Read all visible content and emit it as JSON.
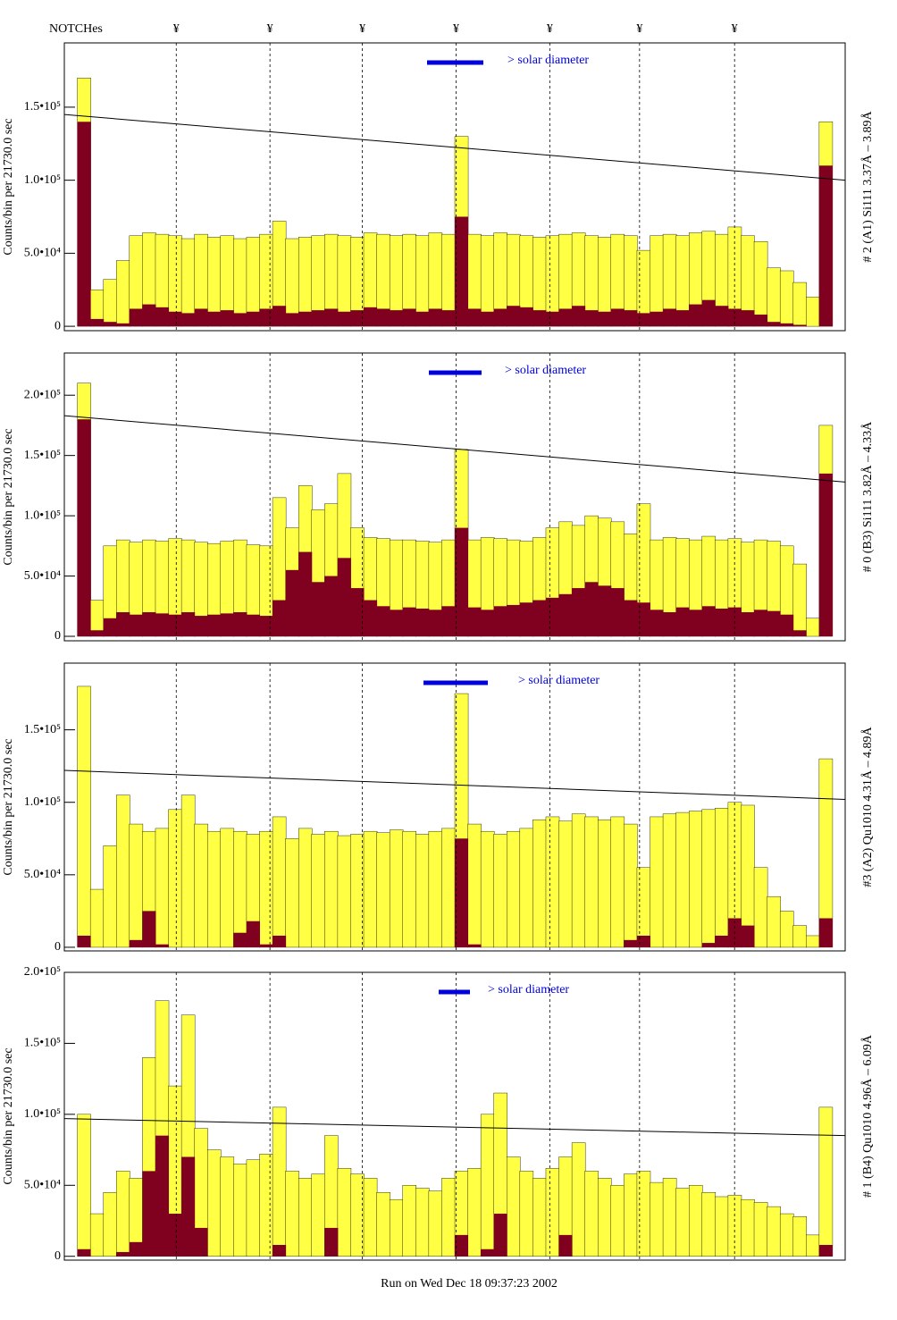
{
  "header": {
    "label": "NOTCHes",
    "markers": [
      "¥",
      "¥",
      "¥",
      "¥",
      "¥",
      "¥",
      "¥"
    ]
  },
  "footer": "Run on Wed Dec 18 09:37:23 2002",
  "chart_data": [
    {
      "type": "histogram",
      "annotation": "> solar diameter",
      "ylabel": "Counts/bin per  21730.0 sec",
      "right_label": "# 2 (A1) Si111  3.37Å – 3.89Å",
      "xlim": [
        0,
        60
      ],
      "notch_x": [
        8.6,
        15.8,
        22.9,
        30.1,
        37.3,
        44.2,
        51.5
      ],
      "ylim": [
        -3000,
        194000
      ],
      "yticks": [
        0,
        {
          "value": 50000,
          "label": "5.0•10⁴"
        },
        {
          "value": 100000,
          "label": "1.0•10⁵"
        },
        {
          "value": 150000,
          "label": "1.5•10⁵"
        }
      ],
      "reference_line": [
        145000,
        100000
      ],
      "series": [
        {
          "color": "#ffff44",
          "values": [
            0,
            170000,
            25000,
            32000,
            45000,
            62000,
            64000,
            63000,
            62000,
            60000,
            63000,
            61000,
            62000,
            60000,
            61000,
            63000,
            72000,
            60000,
            61000,
            62000,
            63000,
            62000,
            61000,
            64000,
            63000,
            62000,
            63000,
            62000,
            64000,
            63000,
            130000,
            63000,
            62000,
            64000,
            63000,
            62000,
            61000,
            62000,
            63000,
            64000,
            62000,
            61000,
            63000,
            62000,
            52000,
            62000,
            63000,
            62000,
            64000,
            65000,
            63000,
            68000,
            62000,
            58000,
            40000,
            38000,
            30000,
            20000,
            140000,
            0
          ]
        },
        {
          "color": "#800020",
          "values": [
            0,
            140000,
            5000,
            3000,
            2000,
            12000,
            15000,
            13000,
            10000,
            9000,
            12000,
            10000,
            11000,
            9000,
            10000,
            12000,
            14000,
            9000,
            10000,
            11000,
            12000,
            10000,
            11000,
            13000,
            12000,
            11000,
            12000,
            10000,
            12000,
            11000,
            75000,
            12000,
            10000,
            12000,
            14000,
            13000,
            11000,
            10000,
            12000,
            14000,
            11000,
            10000,
            12000,
            11000,
            9000,
            10000,
            12000,
            11000,
            15000,
            18000,
            14000,
            12000,
            11000,
            8000,
            3000,
            2000,
            1000,
            0,
            110000,
            0
          ]
        }
      ]
    },
    {
      "type": "histogram",
      "annotation": "> solar diameter",
      "ylabel": "Counts/bin per  21730.0 sec",
      "right_label": "# 0 (B3) Si111  3.82Å – 4.33Å",
      "xlim": [
        0,
        60
      ],
      "notch_x": [
        8.6,
        15.8,
        22.9,
        30.1,
        37.3,
        44.2,
        51.5
      ],
      "ylim": [
        -3700,
        235000
      ],
      "yticks": [
        0,
        {
          "value": 50000,
          "label": "5.0•10⁴"
        },
        {
          "value": 100000,
          "label": "1.0•10⁵"
        },
        {
          "value": 150000,
          "label": "1.5•10⁵"
        },
        {
          "value": 200000,
          "label": "2.0•10⁵"
        }
      ],
      "reference_line": [
        183000,
        128000
      ],
      "series": [
        {
          "color": "#ffff44",
          "values": [
            0,
            210000,
            30000,
            75000,
            80000,
            78000,
            80000,
            79000,
            81000,
            80000,
            78000,
            77000,
            79000,
            80000,
            76000,
            75000,
            115000,
            90000,
            125000,
            105000,
            110000,
            135000,
            90000,
            82000,
            81000,
            80000,
            80000,
            79000,
            78000,
            80000,
            155000,
            80000,
            82000,
            81000,
            80000,
            79000,
            82000,
            90000,
            95000,
            92000,
            100000,
            98000,
            95000,
            85000,
            110000,
            80000,
            82000,
            81000,
            80000,
            83000,
            80000,
            81000,
            78000,
            80000,
            79000,
            75000,
            60000,
            15000,
            175000,
            0
          ]
        },
        {
          "color": "#800020",
          "values": [
            0,
            180000,
            5000,
            15000,
            20000,
            18000,
            20000,
            19000,
            18000,
            20000,
            17000,
            18000,
            19000,
            20000,
            18000,
            17000,
            30000,
            55000,
            70000,
            45000,
            50000,
            65000,
            40000,
            30000,
            25000,
            22000,
            24000,
            23000,
            22000,
            25000,
            90000,
            24000,
            22000,
            25000,
            26000,
            28000,
            30000,
            32000,
            35000,
            40000,
            45000,
            42000,
            40000,
            30000,
            28000,
            22000,
            20000,
            24000,
            22000,
            25000,
            23000,
            24000,
            20000,
            22000,
            21000,
            18000,
            5000,
            0,
            135000,
            0
          ]
        }
      ]
    },
    {
      "type": "histogram",
      "annotation": "> solar diameter",
      "ylabel": "Counts/bin per  21730.0 sec",
      "right_label": "#3 (A2) Qu1010  4.31Å – 4.89Å",
      "xlim": [
        0,
        60
      ],
      "notch_x": [
        8.6,
        15.8,
        22.9,
        30.1,
        37.3,
        44.2,
        51.5
      ],
      "ylim": [
        -2500,
        196000
      ],
      "yticks": [
        0,
        {
          "value": 50000,
          "label": "5.0•10⁴"
        },
        {
          "value": 100000,
          "label": "1.0•10⁵"
        },
        {
          "value": 150000,
          "label": "1.5•10⁵"
        }
      ],
      "reference_line": [
        122000,
        102000
      ],
      "series": [
        {
          "color": "#ffff44",
          "values": [
            0,
            180000,
            40000,
            70000,
            105000,
            85000,
            80000,
            82000,
            95000,
            105000,
            85000,
            80000,
            82000,
            80000,
            78000,
            80000,
            90000,
            75000,
            82000,
            78000,
            80000,
            77000,
            78000,
            80000,
            79000,
            81000,
            80000,
            78000,
            80000,
            82000,
            175000,
            85000,
            80000,
            78000,
            80000,
            82000,
            88000,
            90000,
            87000,
            92000,
            90000,
            88000,
            90000,
            85000,
            55000,
            90000,
            92000,
            93000,
            94000,
            95000,
            96000,
            100000,
            98000,
            55000,
            35000,
            25000,
            15000,
            8000,
            130000,
            0
          ]
        },
        {
          "color": "#800020",
          "values": [
            0,
            8000,
            0,
            0,
            0,
            5000,
            25000,
            2000,
            0,
            0,
            0,
            0,
            0,
            10000,
            18000,
            2000,
            8000,
            0,
            0,
            0,
            0,
            0,
            0,
            0,
            0,
            0,
            0,
            0,
            0,
            0,
            75000,
            2000,
            0,
            0,
            0,
            0,
            0,
            0,
            0,
            0,
            0,
            0,
            0,
            5000,
            8000,
            0,
            0,
            0,
            0,
            3000,
            8000,
            20000,
            15000,
            0,
            0,
            0,
            0,
            0,
            20000,
            0
          ]
        }
      ]
    },
    {
      "type": "histogram",
      "annotation": "> solar diameter",
      "ylabel": "Counts/bin per  21730.0 sec",
      "right_label": "# 1 (B4) Qu1010 4.96Å – 6.09Å",
      "xlim": [
        0,
        60
      ],
      "notch_x": [
        8.6,
        15.8,
        22.9,
        30.1,
        37.3,
        44.2,
        51.5
      ],
      "ylim": [
        -2700,
        200000
      ],
      "yticks": [
        0,
        {
          "value": 50000,
          "label": "5.0•10⁴"
        },
        {
          "value": 100000,
          "label": "1.0•10⁵"
        },
        {
          "value": 150000,
          "label": "1.5•10⁵"
        },
        {
          "value": 200000,
          "label": "2.0•10⁵"
        }
      ],
      "reference_line": [
        97000,
        85000
      ],
      "series": [
        {
          "color": "#ffff44",
          "values": [
            0,
            100000,
            30000,
            45000,
            60000,
            55000,
            140000,
            180000,
            120000,
            170000,
            90000,
            75000,
            70000,
            65000,
            68000,
            72000,
            105000,
            60000,
            55000,
            58000,
            85000,
            62000,
            58000,
            55000,
            45000,
            40000,
            50000,
            48000,
            46000,
            55000,
            60000,
            62000,
            100000,
            115000,
            70000,
            60000,
            55000,
            62000,
            70000,
            80000,
            60000,
            55000,
            50000,
            58000,
            60000,
            52000,
            55000,
            48000,
            50000,
            45000,
            42000,
            43000,
            40000,
            38000,
            35000,
            30000,
            28000,
            15000,
            105000,
            0
          ]
        },
        {
          "color": "#800020",
          "values": [
            0,
            5000,
            0,
            0,
            3000,
            10000,
            60000,
            85000,
            30000,
            70000,
            20000,
            0,
            0,
            0,
            0,
            0,
            8000,
            0,
            0,
            0,
            20000,
            0,
            0,
            0,
            0,
            0,
            0,
            0,
            0,
            0,
            15000,
            0,
            5000,
            30000,
            0,
            0,
            0,
            0,
            15000,
            0,
            0,
            0,
            0,
            0,
            0,
            0,
            0,
            0,
            0,
            0,
            0,
            0,
            0,
            0,
            0,
            0,
            0,
            0,
            8000,
            0
          ]
        }
      ]
    }
  ]
}
